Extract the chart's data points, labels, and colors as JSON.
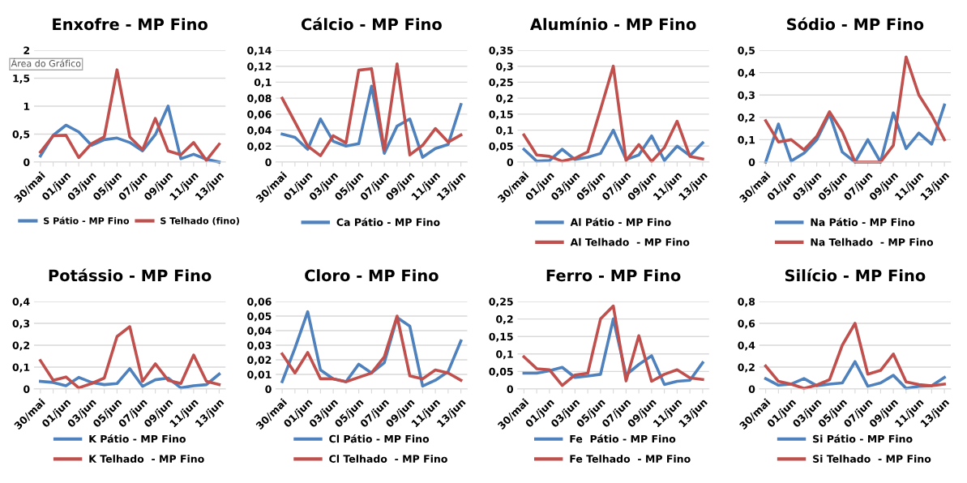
{
  "chart_data": [
    {
      "type": "line",
      "title": "Enxofre - MP Fino",
      "categories": [
        "30/mai",
        null,
        "01/jun",
        null,
        "03/jun",
        null,
        "05/jun",
        null,
        "07/jun",
        null,
        "09/jun",
        null,
        "11/jun",
        null,
        "13/jun"
      ],
      "ylim": [
        0,
        2
      ],
      "yticks": [
        0,
        {
          "value": 0.5,
          "label": "0,5"
        },
        1,
        {
          "value": 1.5,
          "label": "1,5"
        },
        2
      ],
      "grid": "y",
      "legend": "bottom",
      "annotations": [
        "Área do Gráfico"
      ],
      "series": [
        {
          "name": "S Pátio - MP Fino",
          "color": "#4f81bd",
          "values": [
            0.11,
            0.48,
            0.66,
            0.54,
            0.3,
            0.4,
            0.43,
            0.35,
            0.2,
            0.49,
            1.0,
            0.06,
            0.14,
            0.05,
            0
          ]
        },
        {
          "name": "S Telhado (fino)",
          "color": "#c0504d",
          "values": [
            0.18,
            0.47,
            0.48,
            0.08,
            0.33,
            0.45,
            1.65,
            0.45,
            0.22,
            0.78,
            0.2,
            0.13,
            0.35,
            0.03,
            0.32
          ]
        }
      ]
    },
    {
      "type": "line",
      "title": "Cálcio - MP Fino",
      "categories": [
        "30/mai",
        null,
        "01/jun",
        null,
        "03/jun",
        null,
        "05/jun",
        null,
        "07/jun",
        null,
        "09/jun",
        null,
        "11/jun",
        null,
        "13/jun"
      ],
      "ylim": [
        0,
        0.14
      ],
      "yticks": [
        0,
        {
          "value": 0.02,
          "label": "0,02"
        },
        {
          "value": 0.04,
          "label": "0,04"
        },
        {
          "value": 0.06,
          "label": "0,06"
        },
        {
          "value": 0.08,
          "label": "0,08"
        },
        {
          "value": 0.1,
          "label": "0,1"
        },
        {
          "value": 0.12,
          "label": "0,12"
        },
        {
          "value": 0.14,
          "label": "0,14"
        }
      ],
      "grid": "y",
      "legend": "bottom",
      "series": [
        {
          "name": "Ca Pátio - MP Fino",
          "color": "#4f81bd",
          "values": [
            0.035,
            0.031,
            0.016,
            0.054,
            0.026,
            0.02,
            0.023,
            0.095,
            0.011,
            0.045,
            0.054,
            0.006,
            0.017,
            0.022,
            0.072
          ]
        },
        {
          "color": "#c0504d",
          "values": [
            0.08,
            0.05,
            0.02,
            0.008,
            0.033,
            0.024,
            0.115,
            0.117,
            0.015,
            0.123,
            0.009,
            0.021,
            0.042,
            0.025,
            0.034
          ]
        }
      ]
    },
    {
      "type": "line",
      "title": "Alumínio - MP Fino",
      "categories": [
        "30/mai",
        null,
        "01/jun",
        null,
        "03/jun",
        null,
        "05/jun",
        null,
        "07/jun",
        null,
        "09/jun",
        null,
        "11/jun",
        null,
        "13/jun"
      ],
      "ylim": [
        0,
        0.35
      ],
      "yticks": [
        0,
        {
          "value": 0.05,
          "label": "0,05"
        },
        {
          "value": 0.1,
          "label": "0,1"
        },
        {
          "value": 0.15,
          "label": "0,15"
        },
        {
          "value": 0.2,
          "label": "0,2"
        },
        {
          "value": 0.25,
          "label": "0,25"
        },
        {
          "value": 0.3,
          "label": "0,3"
        },
        {
          "value": 0.35,
          "label": "0,35"
        }
      ],
      "grid": "y",
      "legend": "bottom",
      "series": [
        {
          "name": "Al Pátio - MP Fino",
          "color": "#4f81bd",
          "values": [
            0.04,
            0.003,
            0.005,
            0.04,
            0.008,
            0.015,
            0.027,
            0.1,
            0.008,
            0.022,
            0.082,
            0.005,
            0.05,
            0.02,
            0.06
          ]
        },
        {
          "name": "Al Telhado  - MP Fino",
          "color": "#c0504d",
          "values": [
            0.085,
            0.022,
            0.018,
            0.003,
            0.012,
            0.032,
            0.165,
            0.3,
            0.005,
            0.055,
            0.002,
            0.045,
            0.128,
            0.018,
            0.01
          ]
        }
      ]
    },
    {
      "type": "line",
      "title": "Sódio - MP Fino",
      "categories": [
        "30/mai",
        null,
        "01/jun",
        null,
        "03/jun",
        null,
        "05/jun",
        null,
        "07/jun",
        null,
        "09/jun",
        null,
        "11/jun",
        null,
        "13/jun"
      ],
      "ylim": [
        0,
        0.5
      ],
      "yticks": [
        0,
        {
          "value": 0.1,
          "label": "0,1"
        },
        {
          "value": 0.2,
          "label": "0,2"
        },
        {
          "value": 0.3,
          "label": "0,3"
        },
        {
          "value": 0.4,
          "label": "0,4"
        },
        {
          "value": 0.5,
          "label": "0,5"
        }
      ],
      "grid": "y",
      "legend": "bottom",
      "series": [
        {
          "name": "Na Pátio - MP Fino",
          "color": "#4f81bd",
          "values": [
            0.0,
            0.17,
            0.005,
            0.04,
            0.1,
            0.215,
            0.045,
            0.0,
            0.1,
            0.0,
            0.22,
            0.06,
            0.13,
            0.08,
            0.255
          ]
        },
        {
          "name": "Na Telhado  - MP Fino",
          "color": "#c0504d",
          "values": [
            0.185,
            0.09,
            0.1,
            0.055,
            0.115,
            0.225,
            0.135,
            0.0,
            0.0,
            0.0,
            0.075,
            0.47,
            0.3,
            0.21,
            0.1
          ]
        }
      ]
    },
    {
      "type": "line",
      "title": "Potássio - MP Fino",
      "categories": [
        "30/mai",
        null,
        "01/jun",
        null,
        "03/jun",
        null,
        "05/jun",
        null,
        "07/jun",
        null,
        "09/jun",
        null,
        "11/jun",
        null,
        "13/jun"
      ],
      "ylim": [
        0,
        0.4
      ],
      "yticks": [
        0,
        {
          "value": 0.1,
          "label": "0,1"
        },
        {
          "value": 0.2,
          "label": "0,2"
        },
        {
          "value": 0.3,
          "label": "0,3"
        },
        {
          "value": 0.4,
          "label": "0,4"
        }
      ],
      "grid": "y",
      "legend": "bottom",
      "series": [
        {
          "name": "K Pátio - MP Fino",
          "color": "#4f81bd",
          "values": [
            0.035,
            0.03,
            0.015,
            0.053,
            0.03,
            0.02,
            0.025,
            0.093,
            0.012,
            0.042,
            0.05,
            0.005,
            0.015,
            0.02,
            0.068
          ]
        },
        {
          "name": "K Telhado  - MP Fino",
          "color": "#c0504d",
          "values": [
            0.13,
            0.04,
            0.055,
            0.005,
            0.025,
            0.05,
            0.24,
            0.285,
            0.035,
            0.115,
            0.04,
            0.025,
            0.155,
            0.035,
            0.02
          ]
        }
      ]
    },
    {
      "type": "line",
      "title": "Cloro - MP Fino",
      "categories": [
        "30/mai",
        null,
        "01/jun",
        null,
        "03/jun",
        null,
        "05/jun",
        null,
        "07/jun",
        null,
        "09/jun",
        null,
        "11/jun",
        null,
        "13/jun"
      ],
      "ylim": [
        0,
        0.06
      ],
      "yticks": [
        0,
        {
          "value": 0.01,
          "label": "0,01"
        },
        {
          "value": 0.02,
          "label": "0,02"
        },
        {
          "value": 0.03,
          "label": "0,03"
        },
        {
          "value": 0.04,
          "label": "0,04"
        },
        {
          "value": 0.05,
          "label": "0,05"
        },
        {
          "value": 0.06,
          "label": "0,06"
        }
      ],
      "grid": "y",
      "legend": "bottom",
      "series": [
        {
          "name": "Cl Pátio - MP Fino",
          "color": "#4f81bd",
          "values": [
            0.005,
            0.028,
            0.053,
            0.013,
            0.007,
            0.005,
            0.017,
            0.011,
            0.018,
            0.049,
            0.043,
            0.002,
            0.006,
            0.012,
            0.033
          ]
        },
        {
          "name": "Cl Telhado  - MP Fino",
          "color": "#c0504d",
          "values": [
            0.024,
            0.011,
            0.025,
            0.007,
            0.007,
            0.005,
            0.008,
            0.011,
            0.022,
            0.05,
            0.009,
            0.007,
            0.013,
            0.011,
            0.006
          ]
        }
      ]
    },
    {
      "type": "line",
      "title": "Ferro - MP Fino",
      "categories": [
        "30/mai",
        null,
        "01/jun",
        null,
        "03/jun",
        null,
        "05/jun",
        null,
        "07/jun",
        null,
        "09/jun",
        null,
        "11/jun",
        null,
        "13/jun"
      ],
      "ylim": [
        0,
        0.25
      ],
      "yticks": [
        0,
        {
          "value": 0.05,
          "label": "0,05"
        },
        {
          "value": 0.1,
          "label": "0,1"
        },
        {
          "value": 0.15,
          "label": "0,15"
        },
        {
          "value": 0.2,
          "label": "0,2"
        },
        {
          "value": 0.25,
          "label": "0,25"
        }
      ],
      "grid": "y",
      "legend": "bottom",
      "series": [
        {
          "name": "Fe  Pátio - MP Fino",
          "color": "#4f81bd",
          "values": [
            0.045,
            0.045,
            0.052,
            0.062,
            0.033,
            0.037,
            0.042,
            0.2,
            0.04,
            0.07,
            0.095,
            0.013,
            0.022,
            0.025,
            0.075
          ]
        },
        {
          "name": "Fe Telhado  - MP Fino",
          "color": "#c0504d",
          "values": [
            0.092,
            0.058,
            0.055,
            0.01,
            0.04,
            0.045,
            0.2,
            0.237,
            0.023,
            0.152,
            0.022,
            0.042,
            0.055,
            0.032,
            0.027
          ]
        }
      ]
    },
    {
      "type": "line",
      "title": "Silício - MP Fino",
      "categories": [
        "30/mai",
        null,
        "01/jun",
        null,
        "03/jun",
        null,
        "05/jun",
        null,
        "07/jun",
        null,
        "09/jun",
        null,
        "11/jun",
        null,
        "13/jun"
      ],
      "ylim": [
        0,
        0.8
      ],
      "yticks": [
        0,
        {
          "value": 0.2,
          "label": "0,2"
        },
        {
          "value": 0.4,
          "label": "0,4"
        },
        {
          "value": 0.6,
          "label": "0,6"
        },
        {
          "value": 0.8,
          "label": "0,8"
        }
      ],
      "grid": "y",
      "legend": "bottom",
      "series": [
        {
          "name": "Si Pátio - MP Fino",
          "color": "#4f81bd",
          "values": [
            0.095,
            0.035,
            0.045,
            0.095,
            0.03,
            0.045,
            0.055,
            0.25,
            0.025,
            0.055,
            0.125,
            0.005,
            0.025,
            0.03,
            0.105
          ]
        },
        {
          "name": "Si Telhado  - MP Fino",
          "color": "#c0504d",
          "values": [
            0.21,
            0.07,
            0.045,
            0.005,
            0.035,
            0.085,
            0.4,
            0.6,
            0.135,
            0.17,
            0.32,
            0.065,
            0.04,
            0.03,
            0.045
          ]
        }
      ]
    }
  ]
}
